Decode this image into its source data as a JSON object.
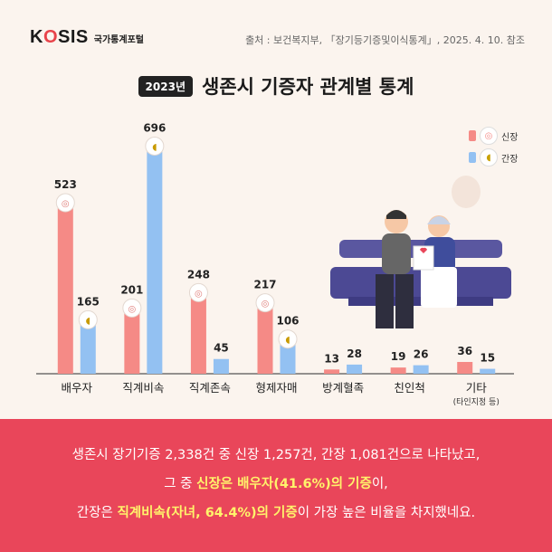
{
  "header": {
    "logo_text_before": "K",
    "logo_text_o": "O",
    "logo_text_after": "SIS",
    "logo_sub": "국가통계포털",
    "source": "출처 : 보건복지부, 「장기등기증및이식통계」, 2025. 4. 10. 참조"
  },
  "title": {
    "year_badge": "2023년",
    "text": "생존시 기증자 관계별 통계"
  },
  "legend": {
    "kidney_label": "신장",
    "liver_label": "간장"
  },
  "colors": {
    "kidney": "#f58a86",
    "liver": "#93c1f2",
    "accent": "#e9465a",
    "highlight": "#fff36b"
  },
  "chart_data": {
    "type": "bar",
    "categories": [
      "배우자",
      "직계비속",
      "직계존속",
      "형제자매",
      "방계혈족",
      "친인척",
      "기타"
    ],
    "category_notes": [
      "",
      "",
      "",
      "",
      "",
      "",
      "(타인지정 등)"
    ],
    "series": [
      {
        "name": "신장",
        "values": [
          523,
          201,
          248,
          217,
          13,
          19,
          36
        ]
      },
      {
        "name": "간장",
        "values": [
          165,
          696,
          45,
          106,
          28,
          26,
          15
        ]
      }
    ],
    "title": "생존시 기증자 관계별 통계",
    "xlabel": "",
    "ylabel": "",
    "ylim": [
      0,
      700
    ],
    "icon_bars": [
      "kidney-0",
      "kidney-1",
      "kidney-2",
      "kidney-3",
      "liver-0",
      "liver-1",
      "liver-3"
    ]
  },
  "footer": {
    "line1": "생존시 장기기증 2,338건 중 신장 1,257건, 간장 1,081건으로 나타났고,",
    "line2_pre": "그 중 ",
    "line2_hl": "신장은 배우자(41.6%)의 기증",
    "line2_post": "이,",
    "line3_pre": "간장은 ",
    "line3_hl": "직계비속(자녀, 64.4%)의 기증",
    "line3_post": "이 가장 높은 비율을 차지했네요."
  }
}
